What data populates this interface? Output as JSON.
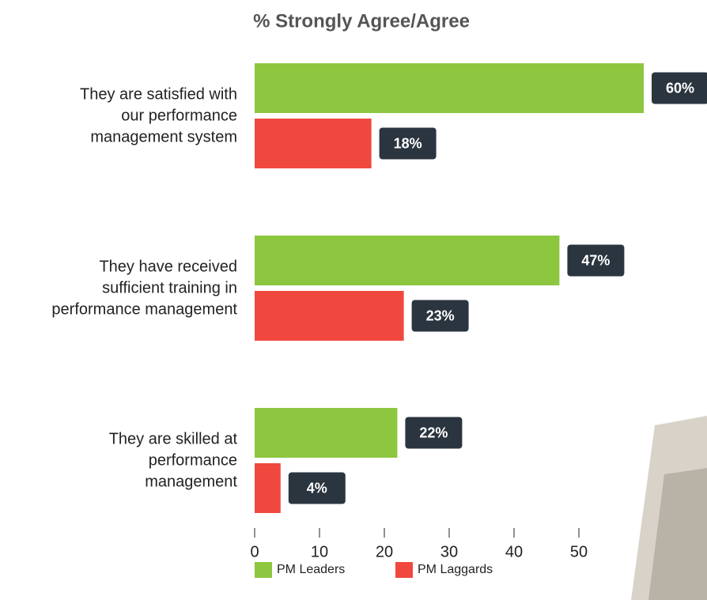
{
  "chart_data": {
    "type": "bar",
    "orientation": "horizontal",
    "title": "% Strongly Agree/Agree",
    "categories": [
      "They are satisfied with\nour performance\nmanagement system",
      "They have received\nsufficient training in\nperformance management",
      "They are skilled at\nperformance\nmanagement"
    ],
    "series": [
      {
        "name": "PM Leaders",
        "color": "#8dc63f",
        "values": [
          60,
          47,
          22
        ],
        "value_labels": [
          "60%",
          "47%",
          "22%"
        ]
      },
      {
        "name": "PM Laggards",
        "color": "#f0483e",
        "values": [
          18,
          23,
          4
        ],
        "value_labels": [
          "18%",
          "23%",
          "4%"
        ]
      }
    ],
    "xlim": [
      0,
      70
    ],
    "xticks": [
      0,
      10,
      20,
      30,
      40,
      50
    ],
    "grid": false
  }
}
